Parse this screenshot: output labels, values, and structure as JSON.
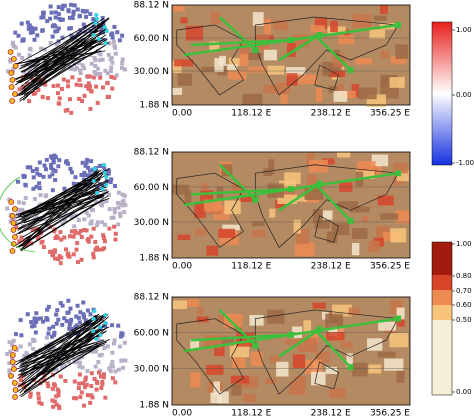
{
  "panels": [
    {
      "yticks": [
        "88.12 N",
        "60.00 N",
        "30.00 N",
        "1.88 N"
      ],
      "xticks": [
        "0.00",
        "118.12 E",
        "238.12 E",
        "356.25 E"
      ]
    },
    {
      "yticks": [
        "88.12 N",
        "60.00 N",
        "30.00 N",
        "1.88 N"
      ],
      "xticks": [
        "0.00",
        "118.12 E",
        "238.12 E",
        "356.25 E"
      ]
    },
    {
      "yticks": [
        "88.12 N",
        "60.00 N",
        "30.00 N",
        "1.88 N"
      ],
      "xticks": [
        "0.00",
        "118.12 E",
        "238.12 E",
        "356.25 E"
      ]
    }
  ],
  "colorbars": [
    {
      "ticks": [
        "1.00",
        "0.00",
        "-1.00"
      ]
    },
    {
      "ticks": [
        "1.00",
        "0.80",
        "0.70",
        "0.60",
        "0.50",
        "0.00"
      ]
    }
  ]
}
